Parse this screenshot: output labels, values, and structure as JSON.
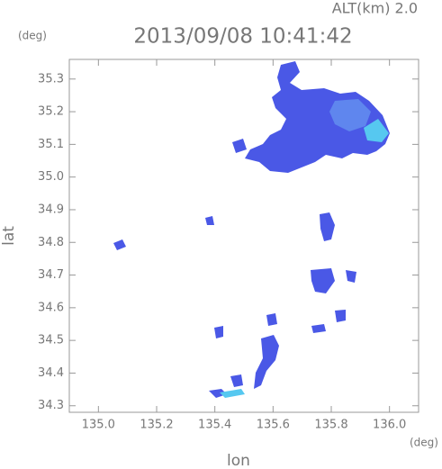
{
  "chart_data": {
    "type": "map",
    "title": "2013/09/08 10:41:42",
    "subtitle": "ALT(km) 2.0",
    "x_label": "lon",
    "y_label": "lat",
    "x_unit": "(deg)",
    "y_unit": "(deg)",
    "xlim": [
      134.9,
      136.1
    ],
    "ylim": [
      34.28,
      35.36
    ],
    "xticks": [
      {
        "value": 135,
        "label": "135.0"
      },
      135.2,
      135.4,
      135.6,
      135.8,
      {
        "value": 136,
        "label": "136.0"
      }
    ],
    "yticks": [
      34.3,
      34.4,
      34.5,
      34.6,
      34.7,
      34.8,
      34.9,
      {
        "value": 35,
        "label": "35.0"
      },
      35.1,
      35.2,
      35.3
    ]
  }
}
